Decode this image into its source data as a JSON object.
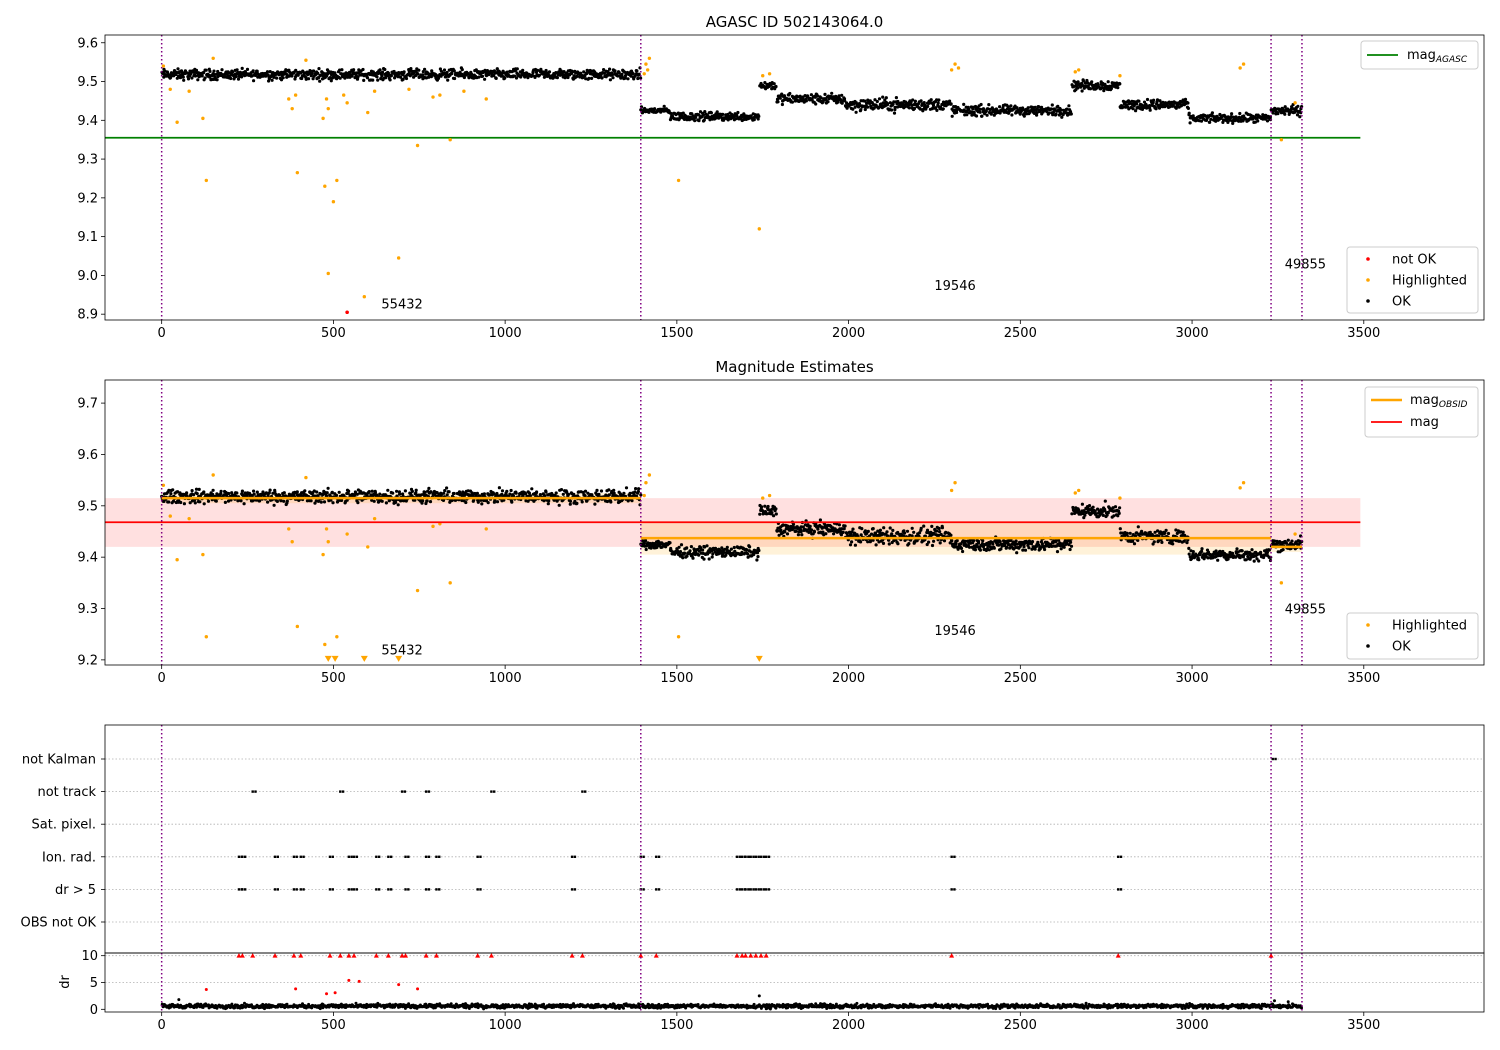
{
  "chart_data": [
    {
      "type": "scatter",
      "title": "AGASC ID 502143064.0",
      "xlim": [
        -165,
        3850
      ],
      "ylim": [
        8.885,
        9.62
      ],
      "x_ticks": [
        0,
        500,
        1000,
        1500,
        2000,
        2500,
        3000,
        3500
      ],
      "y_ticks": [
        8.9,
        9.0,
        9.1,
        9.2,
        9.3,
        9.4,
        9.5,
        9.6
      ],
      "y_tick_labels": [
        "8.9",
        "9.0",
        "9.1",
        "9.2",
        "9.3",
        "9.4",
        "9.5",
        "9.6"
      ],
      "obs_boundaries": [
        0,
        1395,
        3230,
        3320
      ],
      "obsid_labels": [
        {
          "text": "55432",
          "x": 700,
          "y": 8.915
        },
        {
          "text": "19546",
          "x": 2310,
          "y": 8.962
        },
        {
          "text": "49855",
          "x": 3330,
          "y": 9.018
        }
      ],
      "reference_lines": [
        {
          "name_main": "mag",
          "name_sub": "AGASC",
          "color": "#008000",
          "y": 9.355,
          "x": [
            -165,
            3490
          ]
        }
      ],
      "legend": {
        "lines_position": "top-right",
        "points_position": "bottom-right",
        "points": [
          {
            "name": "not OK",
            "color": "#ff0000"
          },
          {
            "name": "Highlighted",
            "color": "#ffa500"
          },
          {
            "name": "OK",
            "color": "#000000"
          }
        ]
      },
      "ok_segments": [
        {
          "x": [
            0,
            1395
          ],
          "y": 9.518,
          "spread": 0.012
        },
        {
          "x": [
            1395,
            1480
          ],
          "y": 9.425,
          "spread": 0.008
        },
        {
          "x": [
            1480,
            1740
          ],
          "y": 9.41,
          "spread": 0.01
        },
        {
          "x": [
            1740,
            1790
          ],
          "y": 9.49,
          "spread": 0.01
        },
        {
          "x": [
            1790,
            1990
          ],
          "y": 9.455,
          "spread": 0.012
        },
        {
          "x": [
            1990,
            2300
          ],
          "y": 9.44,
          "spread": 0.015
        },
        {
          "x": [
            2300,
            2650
          ],
          "y": 9.425,
          "spread": 0.012
        },
        {
          "x": [
            2650,
            2790
          ],
          "y": 9.49,
          "spread": 0.012
        },
        {
          "x": [
            2790,
            2990
          ],
          "y": 9.44,
          "spread": 0.012
        },
        {
          "x": [
            2990,
            3230
          ],
          "y": 9.405,
          "spread": 0.01
        },
        {
          "x": [
            3230,
            3320
          ],
          "y": 9.425,
          "spread": 0.012
        }
      ],
      "highlighted_points": [
        {
          "x": 5,
          "y": 9.54
        },
        {
          "x": 25,
          "y": 9.48
        },
        {
          "x": 45,
          "y": 9.395
        },
        {
          "x": 80,
          "y": 9.475
        },
        {
          "x": 120,
          "y": 9.405
        },
        {
          "x": 130,
          "y": 9.245
        },
        {
          "x": 150,
          "y": 9.56
        },
        {
          "x": 370,
          "y": 9.455
        },
        {
          "x": 380,
          "y": 9.43
        },
        {
          "x": 390,
          "y": 9.465
        },
        {
          "x": 395,
          "y": 9.265
        },
        {
          "x": 420,
          "y": 9.555
        },
        {
          "x": 470,
          "y": 9.405
        },
        {
          "x": 475,
          "y": 9.23
        },
        {
          "x": 480,
          "y": 9.455
        },
        {
          "x": 485,
          "y": 9.43
        },
        {
          "x": 485,
          "y": 9.005
        },
        {
          "x": 500,
          "y": 9.19
        },
        {
          "x": 510,
          "y": 9.245
        },
        {
          "x": 530,
          "y": 9.465
        },
        {
          "x": 540,
          "y": 9.445
        },
        {
          "x": 590,
          "y": 8.945
        },
        {
          "x": 600,
          "y": 9.42
        },
        {
          "x": 620,
          "y": 9.475
        },
        {
          "x": 690,
          "y": 9.045
        },
        {
          "x": 720,
          "y": 9.48
        },
        {
          "x": 745,
          "y": 9.335
        },
        {
          "x": 790,
          "y": 9.46
        },
        {
          "x": 810,
          "y": 9.465
        },
        {
          "x": 840,
          "y": 9.35
        },
        {
          "x": 880,
          "y": 9.475
        },
        {
          "x": 945,
          "y": 9.455
        },
        {
          "x": 1410,
          "y": 9.545
        },
        {
          "x": 1415,
          "y": 9.53
        },
        {
          "x": 1420,
          "y": 9.56
        },
        {
          "x": 1405,
          "y": 9.52
        },
        {
          "x": 1505,
          "y": 9.245
        },
        {
          "x": 1740,
          "y": 9.12
        },
        {
          "x": 1750,
          "y": 9.515
        },
        {
          "x": 1770,
          "y": 9.52
        },
        {
          "x": 2300,
          "y": 9.53
        },
        {
          "x": 2310,
          "y": 9.545
        },
        {
          "x": 2320,
          "y": 9.535
        },
        {
          "x": 2660,
          "y": 9.525
        },
        {
          "x": 2670,
          "y": 9.53
        },
        {
          "x": 2790,
          "y": 9.515
        },
        {
          "x": 3140,
          "y": 9.535
        },
        {
          "x": 3150,
          "y": 9.545
        },
        {
          "x": 3260,
          "y": 9.35
        },
        {
          "x": 3300,
          "y": 9.445
        }
      ],
      "not_ok_points": [
        {
          "x": 540,
          "y": 8.905
        }
      ]
    },
    {
      "type": "scatter",
      "title": "Magnitude Estimates",
      "xlim": [
        -165,
        3850
      ],
      "ylim": [
        9.19,
        9.745
      ],
      "x_ticks": [
        0,
        500,
        1000,
        1500,
        2000,
        2500,
        3000,
        3500
      ],
      "y_ticks": [
        9.2,
        9.3,
        9.4,
        9.5,
        9.6,
        9.7
      ],
      "y_tick_labels": [
        "9.2",
        "9.3",
        "9.4",
        "9.5",
        "9.6",
        "9.7"
      ],
      "obs_boundaries": [
        0,
        1395,
        3230,
        3320
      ],
      "obsid_labels": [
        {
          "text": "55432",
          "x": 700,
          "y": 9.21
        },
        {
          "text": "19546",
          "x": 2310,
          "y": 9.248
        },
        {
          "text": "49855",
          "x": 3330,
          "y": 9.29
        }
      ],
      "reference_lines": [
        {
          "name_main": "mag",
          "name_sub": "OBSID",
          "color": "#ffa500",
          "segments": [
            {
              "x": [
                0,
                1395
              ],
              "y": 9.515,
              "band": [
                9.505,
                9.525
              ]
            },
            {
              "x": [
                1395,
                3230
              ],
              "y": 9.437,
              "band": [
                9.405,
                9.47
              ]
            },
            {
              "x": [
                3230,
                3320
              ],
              "y": 9.42,
              "band": [
                9.41,
                9.43
              ]
            }
          ]
        },
        {
          "name_main": "mag",
          "name_sub": "",
          "color": "#ff0000",
          "y": 9.468,
          "band": [
            9.42,
            9.515
          ],
          "x": [
            -165,
            3490
          ]
        }
      ],
      "legend": {
        "lines_position": "top-right",
        "points_position": "bottom-right",
        "points": [
          {
            "name": "Highlighted",
            "color": "#ffa500"
          },
          {
            "name": "OK",
            "color": "#000000"
          }
        ]
      },
      "ok_segments": [
        {
          "x": [
            0,
            1395
          ],
          "y": 9.518,
          "spread": 0.012
        },
        {
          "x": [
            1395,
            1480
          ],
          "y": 9.425,
          "spread": 0.008
        },
        {
          "x": [
            1480,
            1740
          ],
          "y": 9.41,
          "spread": 0.01
        },
        {
          "x": [
            1740,
            1790
          ],
          "y": 9.49,
          "spread": 0.01
        },
        {
          "x": [
            1790,
            1990
          ],
          "y": 9.455,
          "spread": 0.012
        },
        {
          "x": [
            1990,
            2300
          ],
          "y": 9.44,
          "spread": 0.015
        },
        {
          "x": [
            2300,
            2650
          ],
          "y": 9.425,
          "spread": 0.012
        },
        {
          "x": [
            2650,
            2790
          ],
          "y": 9.49,
          "spread": 0.012
        },
        {
          "x": [
            2790,
            2990
          ],
          "y": 9.44,
          "spread": 0.012
        },
        {
          "x": [
            2990,
            3230
          ],
          "y": 9.405,
          "spread": 0.01
        },
        {
          "x": [
            3230,
            3320
          ],
          "y": 9.425,
          "spread": 0.012
        }
      ],
      "highlighted_points": [
        {
          "x": 5,
          "y": 9.54
        },
        {
          "x": 25,
          "y": 9.48
        },
        {
          "x": 45,
          "y": 9.395
        },
        {
          "x": 80,
          "y": 9.475
        },
        {
          "x": 120,
          "y": 9.405
        },
        {
          "x": 130,
          "y": 9.245
        },
        {
          "x": 150,
          "y": 9.56
        },
        {
          "x": 370,
          "y": 9.455
        },
        {
          "x": 380,
          "y": 9.43
        },
        {
          "x": 395,
          "y": 9.265
        },
        {
          "x": 420,
          "y": 9.555
        },
        {
          "x": 470,
          "y": 9.405
        },
        {
          "x": 475,
          "y": 9.23
        },
        {
          "x": 480,
          "y": 9.455
        },
        {
          "x": 485,
          "y": 9.43
        },
        {
          "x": 510,
          "y": 9.245
        },
        {
          "x": 540,
          "y": 9.445
        },
        {
          "x": 600,
          "y": 9.42
        },
        {
          "x": 620,
          "y": 9.475
        },
        {
          "x": 745,
          "y": 9.335
        },
        {
          "x": 790,
          "y": 9.46
        },
        {
          "x": 810,
          "y": 9.465
        },
        {
          "x": 840,
          "y": 9.35
        },
        {
          "x": 945,
          "y": 9.455
        },
        {
          "x": 1405,
          "y": 9.52
        },
        {
          "x": 1410,
          "y": 9.545
        },
        {
          "x": 1420,
          "y": 9.56
        },
        {
          "x": 1505,
          "y": 9.245
        },
        {
          "x": 1750,
          "y": 9.515
        },
        {
          "x": 1770,
          "y": 9.52
        },
        {
          "x": 2300,
          "y": 9.53
        },
        {
          "x": 2310,
          "y": 9.545
        },
        {
          "x": 2660,
          "y": 9.525
        },
        {
          "x": 2670,
          "y": 9.53
        },
        {
          "x": 2790,
          "y": 9.515
        },
        {
          "x": 3140,
          "y": 9.535
        },
        {
          "x": 3150,
          "y": 9.545
        },
        {
          "x": 3260,
          "y": 9.35
        },
        {
          "x": 3300,
          "y": 9.445
        }
      ],
      "clipped_points": [
        {
          "x": 485,
          "y": 9.2
        },
        {
          "x": 505,
          "y": 9.2
        },
        {
          "x": 590,
          "y": 9.2
        },
        {
          "x": 690,
          "y": 9.2
        },
        {
          "x": 1740,
          "y": 9.2
        }
      ]
    },
    {
      "type": "scatter",
      "title": "",
      "xlim": [
        -165,
        3850
      ],
      "x_ticks": [
        0,
        500,
        1000,
        1500,
        2000,
        2500,
        3000,
        3500
      ],
      "obs_boundaries": [
        0,
        1395,
        3230,
        3320
      ],
      "flag_rows": [
        {
          "label": "not Kalman",
          "x": [
            3235
          ]
        },
        {
          "label": "not track",
          "x": [
            265,
            520,
            700,
            770,
            960,
            1225
          ]
        },
        {
          "label": "Sat. pixel.",
          "x": []
        },
        {
          "label": "Ion. rad.",
          "x": [
            225,
            235,
            330,
            385,
            405,
            490,
            545,
            560,
            625,
            660,
            710,
            770,
            800,
            920,
            1195,
            1395,
            1440,
            1675,
            1690,
            1700,
            1715,
            1730,
            1745,
            1760,
            2300,
            2785
          ]
        },
        {
          "label": "dr > 5",
          "x": [
            225,
            235,
            330,
            385,
            405,
            490,
            545,
            560,
            625,
            660,
            710,
            770,
            800,
            920,
            1195,
            1395,
            1440,
            1675,
            1690,
            1700,
            1715,
            1730,
            1745,
            1760,
            2300,
            2785
          ]
        },
        {
          "label": "OBS not OK",
          "x": []
        }
      ],
      "dr_panel": {
        "ylabel": "dr",
        "ylim": [
          -0.5,
          10.5
        ],
        "y_ticks": [
          0,
          5,
          10
        ],
        "y_tick_labels": [
          "0",
          "5",
          "10"
        ],
        "baseline": 0.6,
        "spread": 0.35,
        "outliers_ok": [
          {
            "x": 50,
            "y": 1.8
          },
          {
            "x": 1740,
            "y": 2.5
          },
          {
            "x": 3240,
            "y": 1.6
          },
          {
            "x": 3280,
            "y": 1.4
          }
        ],
        "outliers_bad": [
          {
            "x": 130,
            "y": 3.7
          },
          {
            "x": 390,
            "y": 3.8
          },
          {
            "x": 480,
            "y": 2.9
          },
          {
            "x": 505,
            "y": 3.1
          },
          {
            "x": 545,
            "y": 5.4
          },
          {
            "x": 575,
            "y": 5.2
          },
          {
            "x": 690,
            "y": 4.6
          },
          {
            "x": 745,
            "y": 3.8
          }
        ],
        "capped_x": [
          225,
          235,
          265,
          330,
          385,
          405,
          490,
          520,
          545,
          560,
          625,
          660,
          700,
          710,
          770,
          800,
          920,
          960,
          1195,
          1225,
          1395,
          1440,
          1675,
          1690,
          1700,
          1715,
          1730,
          1745,
          1760,
          2300,
          2785,
          3230
        ]
      }
    }
  ]
}
